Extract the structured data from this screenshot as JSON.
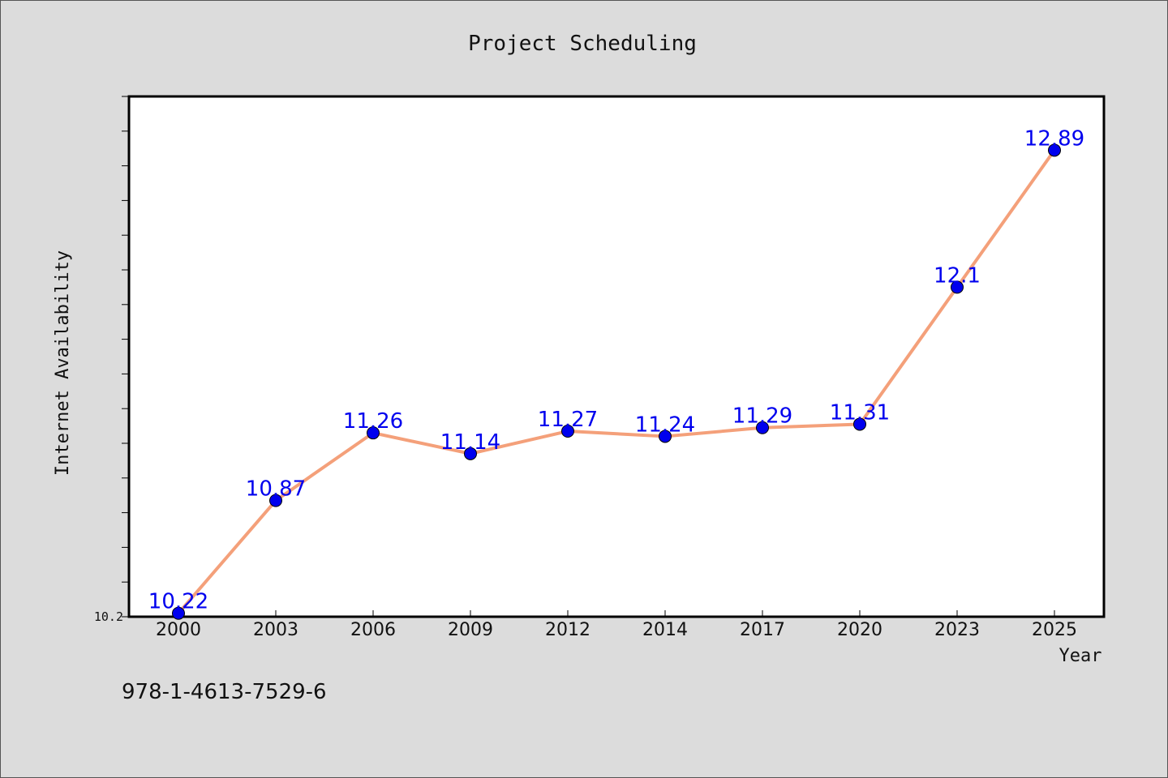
{
  "chart_data": {
    "type": "line",
    "title": "Project Scheduling",
    "xlabel": "Year",
    "ylabel": "Internet Availability",
    "categories": [
      "2000",
      "2003",
      "2006",
      "2009",
      "2012",
      "2014",
      "2017",
      "2020",
      "2023",
      "2025"
    ],
    "series": [
      {
        "values": [
          10.22,
          10.87,
          11.26,
          11.14,
          11.27,
          11.24,
          11.29,
          11.31,
          12.1,
          12.89
        ]
      }
    ],
    "data_labels": [
      "10.22",
      "10.87",
      "11.26",
      "11.14",
      "11.27",
      "11.24",
      "11.29",
      "11.31",
      "12.1",
      "12.89"
    ],
    "ylim": [
      10.2,
      13.2
    ],
    "ytick_labels": [
      "10.2"
    ],
    "grid": false,
    "line_color": "#f4a07a",
    "marker_color": "#0000ee",
    "label_color": "#0000ee"
  },
  "footer": {
    "isbn": "978-1-4613-7529-6"
  }
}
